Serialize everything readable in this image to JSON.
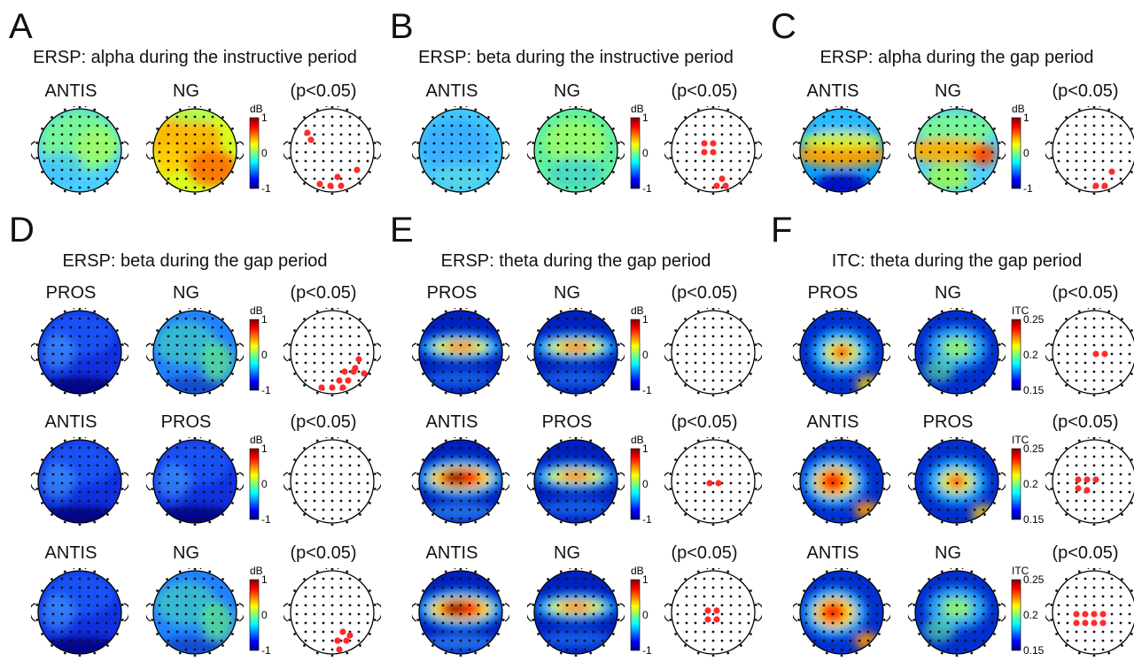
{
  "panels": [
    {
      "letter": "A",
      "title": "ERSP: alpha during the instructive period",
      "rows": [
        {
          "c1": "ANTIS",
          "c2": "NG",
          "c3": "(p<0.05)",
          "unit": "dB",
          "ticks": [
            "1",
            "0",
            "-1"
          ],
          "map1": "mild",
          "map2": "warm",
          "sig": "A1"
        }
      ]
    },
    {
      "letter": "B",
      "title": "ERSP: beta during the instructive period",
      "rows": [
        {
          "c1": "ANTIS",
          "c2": "NG",
          "c3": "(p<0.05)",
          "unit": "dB",
          "ticks": [
            "1",
            "0",
            "-1"
          ],
          "map1": "cool",
          "map2": "green",
          "sig": "B1"
        }
      ]
    },
    {
      "letter": "C",
      "title": "ERSP: alpha during the gap period",
      "rows": [
        {
          "c1": "ANTIS",
          "c2": "NG",
          "c3": "(p<0.05)",
          "unit": "dB",
          "ticks": [
            "1",
            "0",
            "-1"
          ],
          "map1": "band",
          "map2": "band2",
          "sig": "C1"
        }
      ]
    },
    {
      "letter": "D",
      "title": "ERSP: beta during the gap period",
      "rows": [
        {
          "c1": "PROS",
          "c2": "NG",
          "c3": "(p<0.05)",
          "unit": "dB",
          "ticks": [
            "1",
            "0",
            "-1"
          ],
          "map1": "blue",
          "map2": "bluegreen",
          "sig": "D1"
        },
        {
          "c1": "ANTIS",
          "c2": "PROS",
          "c3": "(p<0.05)",
          "unit": "dB",
          "ticks": [
            "1",
            "0",
            "-1"
          ],
          "map1": "blue",
          "map2": "blue",
          "sig": "none"
        },
        {
          "c1": "ANTIS",
          "c2": "NG",
          "c3": "(p<0.05)",
          "unit": "dB",
          "ticks": [
            "1",
            "0",
            "-1"
          ],
          "map1": "blue",
          "map2": "bluegreen",
          "sig": "D3"
        }
      ]
    },
    {
      "letter": "E",
      "title": "ERSP: theta during the gap period",
      "rows": [
        {
          "c1": "PROS",
          "c2": "NG",
          "c3": "(p<0.05)",
          "unit": "dB",
          "ticks": [
            "1",
            "0",
            "-1"
          ],
          "map1": "theta",
          "map2": "theta",
          "sig": "none"
        },
        {
          "c1": "ANTIS",
          "c2": "PROS",
          "c3": "(p<0.05)",
          "unit": "dB",
          "ticks": [
            "1",
            "0",
            "-1"
          ],
          "map1": "thetaHot",
          "map2": "theta",
          "sig": "E2"
        },
        {
          "c1": "ANTIS",
          "c2": "NG",
          "c3": "(p<0.05)",
          "unit": "dB",
          "ticks": [
            "1",
            "0",
            "-1"
          ],
          "map1": "thetaHot",
          "map2": "theta",
          "sig": "E3"
        }
      ]
    },
    {
      "letter": "F",
      "title": "ITC: theta during the gap period",
      "rows": [
        {
          "c1": "PROS",
          "c2": "NG",
          "c3": "(p<0.05)",
          "unit": "ITC",
          "ticks": [
            "0.25",
            "0.2",
            "0.15"
          ],
          "map1": "itc",
          "map2": "itcLow",
          "sig": "F1"
        },
        {
          "c1": "ANTIS",
          "c2": "PROS",
          "c3": "(p<0.05)",
          "unit": "ITC",
          "ticks": [
            "0.25",
            "0.2",
            "0.15"
          ],
          "map1": "itcHot",
          "map2": "itc",
          "sig": "F2"
        },
        {
          "c1": "ANTIS",
          "c2": "NG",
          "c3": "(p<0.05)",
          "unit": "ITC",
          "ticks": [
            "0.25",
            "0.2",
            "0.15"
          ],
          "map1": "itcHot",
          "map2": "itcLow",
          "sig": "F3"
        }
      ]
    }
  ],
  "colors": {
    "sig_dot": "#ff2a2a",
    "electrode": "#111111"
  }
}
